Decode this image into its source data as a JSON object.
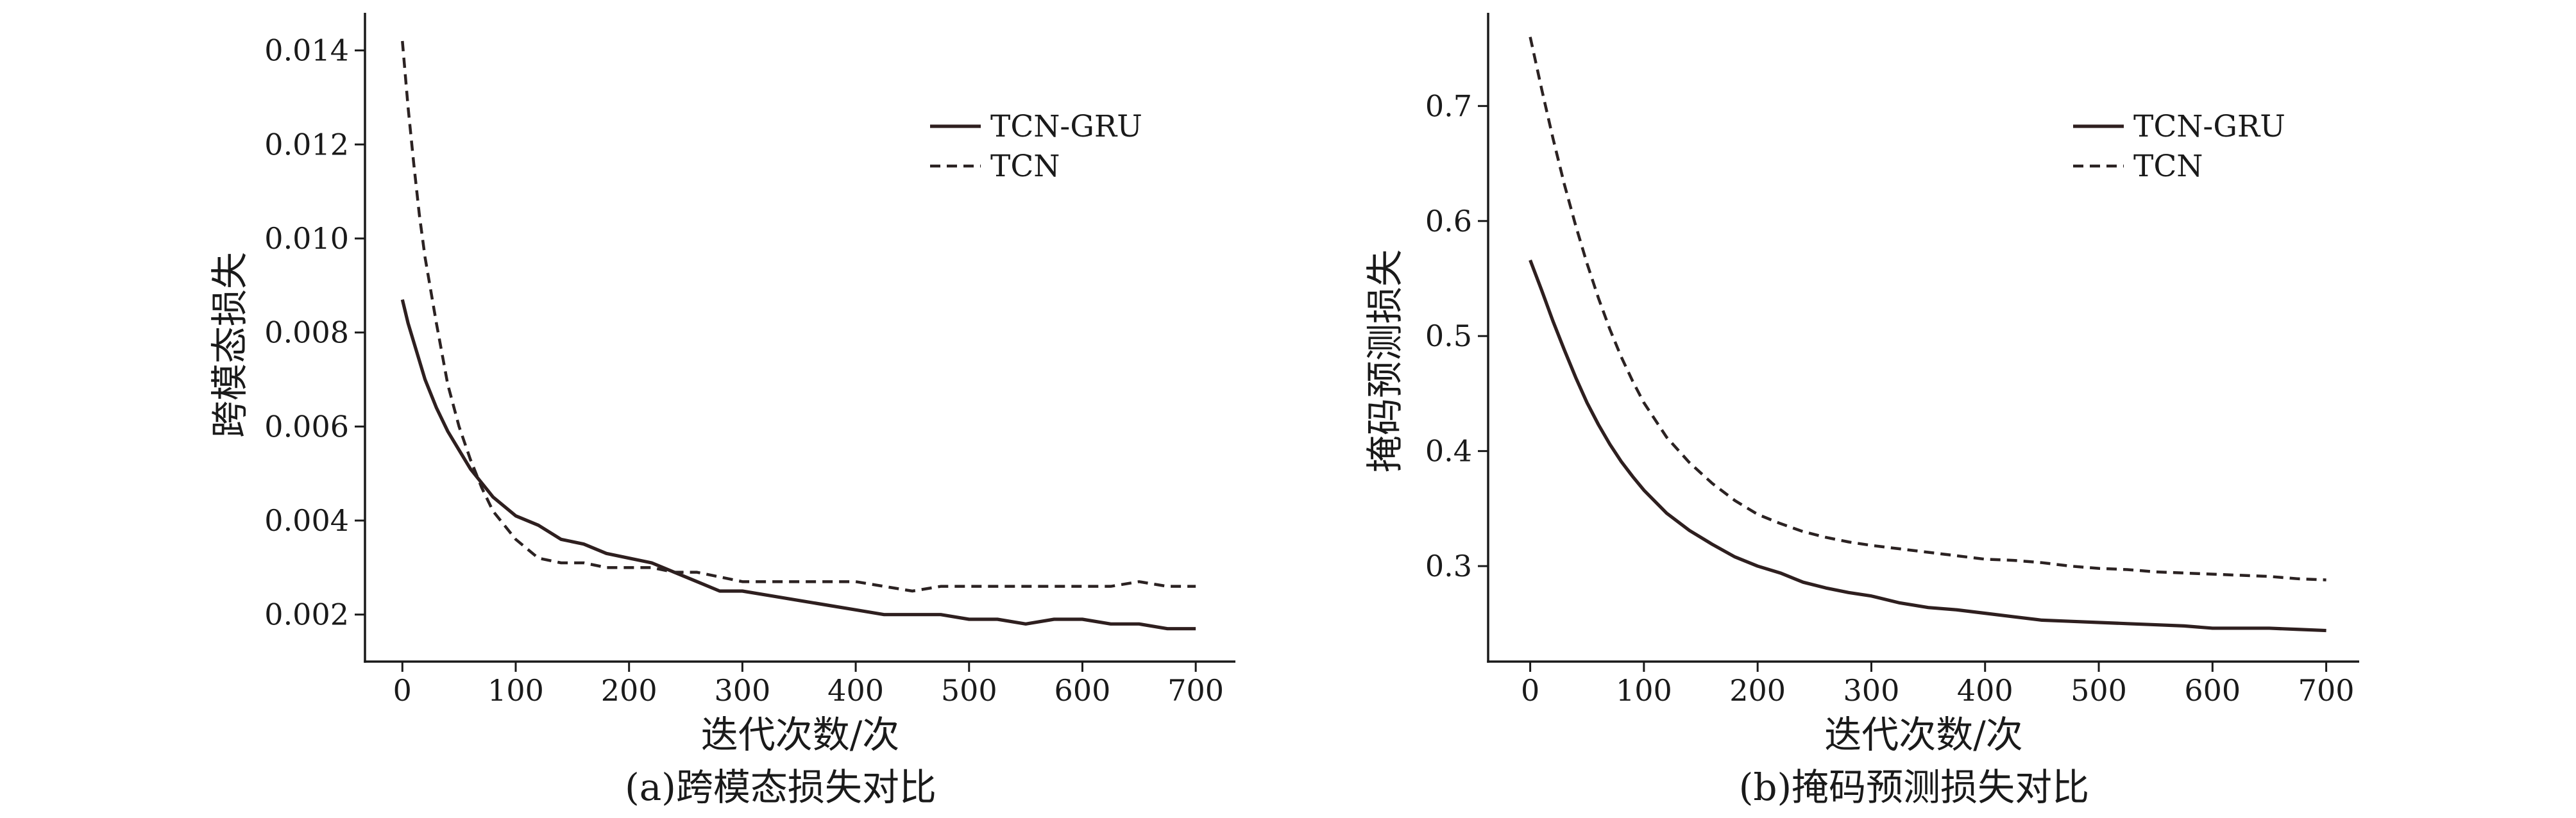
{
  "chart_data": [
    {
      "type": "line",
      "title": "(a)跨模态损失对比",
      "xlabel": "迭代次数/次",
      "ylabel": "跨模态损失",
      "xlim": [
        -33,
        735
      ],
      "ylim": [
        0.001,
        0.0148
      ],
      "xticks": [
        "0",
        "100",
        "200",
        "300",
        "400",
        "500",
        "600",
        "700"
      ],
      "yticks": [
        "0.002",
        "0.004",
        "0.006",
        "0.008",
        "0.010",
        "0.012",
        "0.014"
      ],
      "grid": false,
      "legend": "top-right",
      "axis_color": "#1a1a1a",
      "x": [
        0,
        5,
        10,
        15,
        20,
        30,
        40,
        50,
        60,
        70,
        80,
        90,
        100,
        120,
        140,
        160,
        180,
        200,
        220,
        240,
        260,
        280,
        300,
        325,
        350,
        375,
        400,
        425,
        450,
        475,
        500,
        525,
        550,
        575,
        600,
        625,
        650,
        675,
        700
      ],
      "series": [
        {
          "name": "TCN-GRU",
          "line_style": "solid",
          "color": "#2e1f1f",
          "values": [
            0.0087,
            0.0082,
            0.0078,
            0.0074,
            0.007,
            0.0064,
            0.0059,
            0.0055,
            0.0051,
            0.0048,
            0.0045,
            0.0043,
            0.0041,
            0.0039,
            0.0036,
            0.0035,
            0.0033,
            0.0032,
            0.0031,
            0.0029,
            0.0027,
            0.0025,
            0.0025,
            0.0024,
            0.0023,
            0.0022,
            0.0021,
            0.002,
            0.002,
            0.002,
            0.0019,
            0.0019,
            0.0018,
            0.0019,
            0.0019,
            0.0018,
            0.0018,
            0.0017,
            0.0017
          ]
        },
        {
          "name": "TCN",
          "line_style": "dashed",
          "color": "#2b2222",
          "values": [
            0.0142,
            0.0128,
            0.0116,
            0.0105,
            0.0096,
            0.0082,
            0.0069,
            0.006,
            0.0053,
            0.0047,
            0.0042,
            0.0039,
            0.0036,
            0.0032,
            0.0031,
            0.0031,
            0.003,
            0.003,
            0.003,
            0.0029,
            0.0029,
            0.0028,
            0.0027,
            0.0027,
            0.0027,
            0.0027,
            0.0027,
            0.0026,
            0.0025,
            0.0026,
            0.0026,
            0.0026,
            0.0026,
            0.0026,
            0.0026,
            0.0026,
            0.0027,
            0.0026,
            0.0026
          ]
        }
      ]
    },
    {
      "type": "line",
      "title": "(b)掩码预测损失对比",
      "xlabel": "迭代次数/次",
      "ylabel": "掩码预测损失",
      "xlim": [
        -37,
        729
      ],
      "ylim": [
        0.217,
        0.781
      ],
      "xticks": [
        "0",
        "100",
        "200",
        "300",
        "400",
        "500",
        "600",
        "700"
      ],
      "yticks": [
        "0.3",
        "0.4",
        "0.5",
        "0.6",
        "0.7"
      ],
      "grid": false,
      "legend": "top-right",
      "axis_color": "#1a1a1a",
      "x": [
        0,
        10,
        20,
        30,
        40,
        50,
        60,
        70,
        80,
        90,
        100,
        120,
        140,
        160,
        180,
        200,
        220,
        240,
        260,
        280,
        300,
        325,
        350,
        375,
        400,
        425,
        450,
        475,
        500,
        525,
        550,
        575,
        600,
        625,
        650,
        675,
        700
      ],
      "series": [
        {
          "name": "TCN-GRU",
          "line_style": "solid",
          "color": "#2e1f1f",
          "values": [
            0.566,
            0.54,
            0.513,
            0.488,
            0.464,
            0.442,
            0.423,
            0.406,
            0.391,
            0.378,
            0.366,
            0.346,
            0.331,
            0.319,
            0.308,
            0.3,
            0.294,
            0.286,
            0.281,
            0.277,
            0.274,
            0.268,
            0.264,
            0.262,
            0.259,
            0.256,
            0.253,
            0.252,
            0.251,
            0.25,
            0.249,
            0.248,
            0.246,
            0.246,
            0.246,
            0.245,
            0.244
          ]
        },
        {
          "name": "TCN",
          "line_style": "dashed",
          "color": "#2b2222",
          "values": [
            0.76,
            0.715,
            0.672,
            0.632,
            0.596,
            0.563,
            0.533,
            0.506,
            0.482,
            0.461,
            0.442,
            0.412,
            0.39,
            0.372,
            0.357,
            0.345,
            0.337,
            0.33,
            0.325,
            0.321,
            0.318,
            0.315,
            0.312,
            0.309,
            0.306,
            0.305,
            0.303,
            0.3,
            0.298,
            0.297,
            0.295,
            0.294,
            0.293,
            0.292,
            0.291,
            0.289,
            0.288
          ]
        }
      ]
    }
  ]
}
